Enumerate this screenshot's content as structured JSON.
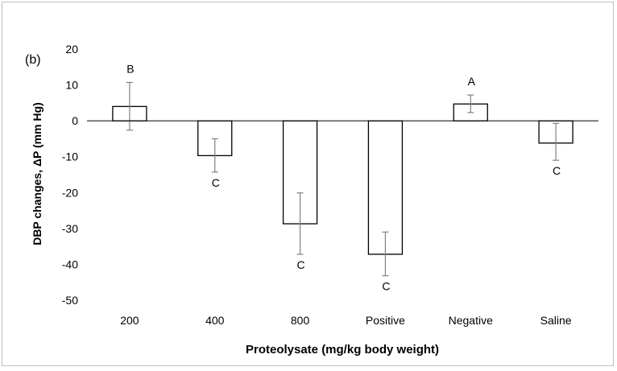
{
  "chart_data": {
    "type": "bar",
    "panel_label": "(b)",
    "title": "",
    "xlabel": "Proteolysate (mg/kg body weight)",
    "ylabel": "DBP changes, ΔP (mm Hg)",
    "ylim": [
      -50,
      20
    ],
    "yticks": [
      "20",
      "10",
      "0",
      "-10",
      "-20",
      "-30",
      "-40",
      "-50"
    ],
    "categories": [
      "200",
      "400",
      "800",
      "Positive",
      "Negative",
      "Saline"
    ],
    "values": [
      4,
      -9.7,
      -28.7,
      -37.2,
      4.7,
      -6.2
    ],
    "error_bars": [
      {
        "upper": 10.7,
        "lower": -2.6
      },
      {
        "upper": -5.0,
        "lower": -14.3
      },
      {
        "upper": -20.1,
        "lower": -37.2
      },
      {
        "upper": -31.0,
        "lower": -43.2
      },
      {
        "upper": 7.2,
        "lower": 2.3
      },
      {
        "upper": -0.7,
        "lower": -11.0
      }
    ],
    "significance_letters": [
      "B",
      "C",
      "C",
      "C",
      "A",
      "C"
    ],
    "grid": false,
    "legend": "none",
    "bar_fill": "#ffffff",
    "bar_stroke": "#000000",
    "error_color": "#808080"
  }
}
